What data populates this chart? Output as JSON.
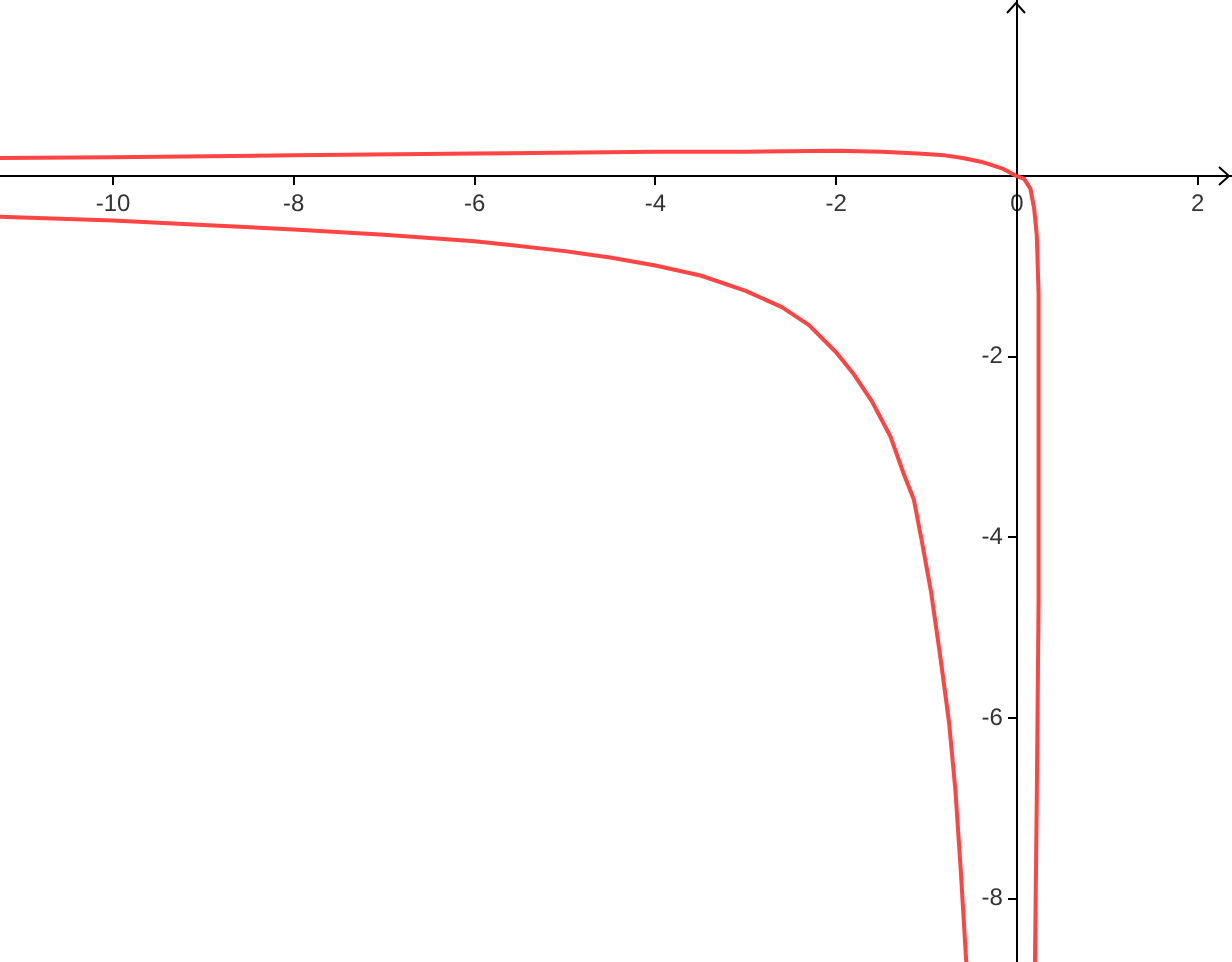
{
  "chart_data": {
    "type": "line",
    "marker": "none",
    "line_style": "solid",
    "series": [
      {
        "color": "#ff4444",
        "x": [
          -11.25,
          -10,
          -8,
          -6,
          -4,
          -3,
          -2,
          -1.5,
          -1.1,
          -0.8,
          -0.6,
          -0.4,
          -0.3,
          -0.15,
          0,
          0.08,
          0.15,
          0.19,
          0.22,
          0.24,
          0.24,
          0.22,
          0.2
        ],
        "values": [
          0.2,
          0.21,
          0.23,
          0.25,
          0.27,
          0.27,
          0.28,
          0.27,
          0.25,
          0.23,
          0.2,
          0.16,
          0.13,
          0.08,
          0,
          -0.03,
          -0.14,
          -0.35,
          -0.65,
          -1.3,
          -4.7,
          -6.9,
          -8.7
        ]
      },
      {
        "color": "#ff4444",
        "x": [
          -11.25,
          -10,
          -9,
          -8,
          -7,
          -6,
          -5,
          -4.5,
          -4,
          -3.5,
          -3,
          -2.6,
          -2.3,
          -2,
          -1.8,
          -1.6,
          -1.4,
          -1.25,
          -1.14,
          -1.05,
          -0.95,
          -0.85,
          -0.75,
          -0.68,
          -0.62,
          -0.56
        ],
        "values": [
          -0.45,
          -0.49,
          -0.54,
          -0.59,
          -0.65,
          -0.72,
          -0.83,
          -0.9,
          -0.99,
          -1.1,
          -1.27,
          -1.45,
          -1.65,
          -1.95,
          -2.2,
          -2.5,
          -2.88,
          -3.3,
          -3.58,
          -4.05,
          -4.6,
          -5.3,
          -6.05,
          -6.8,
          -7.7,
          -8.7
        ]
      }
    ],
    "xlim": [
      -11.25,
      2.38
    ],
    "ylim": [
      -8.7,
      1.95
    ],
    "xticks": [
      -10,
      -8,
      -6,
      -4,
      -2,
      0,
      2
    ],
    "yticks": [
      -8,
      -6,
      -4,
      -2
    ]
  }
}
